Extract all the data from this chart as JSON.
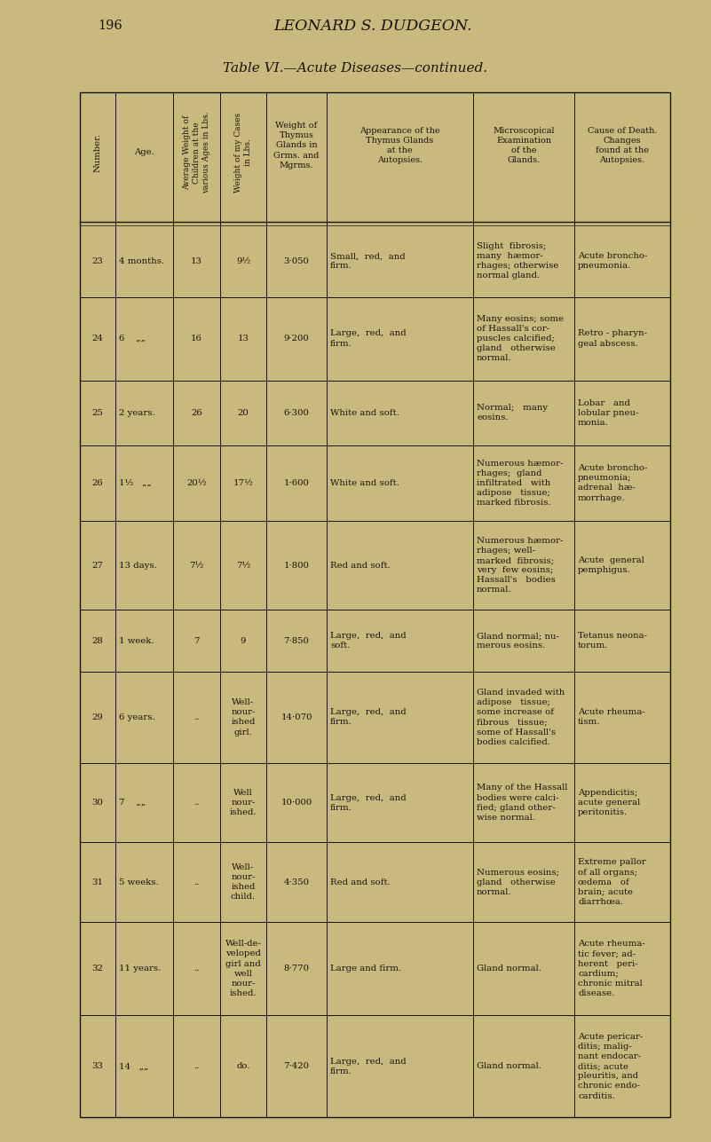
{
  "page_number": "196",
  "page_header": "LEONARD S. DUDGEON.",
  "table_title": "Table VI.—Acute Diseases—continued.",
  "bg_color": "#c8ba7e",
  "text_color": "#1a1208",
  "col_headers": [
    "Number.",
    "Age.",
    "Average Weight of\nChildren at the\nvarious Ages in Lbs.",
    "Weight of my Cases\nin Lbs.",
    "Weight of\nThymus\nGlands in\nGrms. and\nMgrms.",
    "Appearance of the\nThymus Glands\nat the\nAutopsies.",
    "Microscopical\nExamination\nof the\nGlands.",
    "Cause of Death.\nChanges\nfound at the\nAutopsies."
  ],
  "rows": [
    {
      "num": "23",
      "age": "4 months.",
      "avg_wt": "13",
      "case_wt": "9½",
      "thymus_wt": "3·050",
      "appearance": "Small,  red,  and\nfirm.",
      "microscopical": "Slight  fibrosis;\nmany  hæmor-\nrhages; otherwise\nnormal gland.",
      "cause": "Acute broncho-\npneumonia."
    },
    {
      "num": "24",
      "age": "6    „„",
      "avg_wt": "16",
      "case_wt": "13",
      "thymus_wt": "9·200",
      "appearance": "Large,  red,  and\nfirm.",
      "microscopical": "Many eosins; some\nof Hassall's cor-\npuscles calcified;\ngland   otherwise\nnormal.",
      "cause": "Retro - pharyn-\ngeal abscess."
    },
    {
      "num": "25",
      "age": "2 years.",
      "avg_wt": "26",
      "case_wt": "20",
      "thymus_wt": "6·300",
      "appearance": "White and soft.",
      "microscopical": "Normal;   many\neosins.",
      "cause": "Lobar   and\nlobular pneu-\nmonia."
    },
    {
      "num": "26",
      "age": "1⅟₂   „„",
      "avg_wt": "20½",
      "case_wt": "17½",
      "thymus_wt": "1·600",
      "appearance": "White and soft.",
      "microscopical": "Numerous hæmor-\nrhages;  gland\ninfiltrated   with\nadipose   tissue;\nmarked fibrosis.",
      "cause": "Acute broncho-\npneumonia;\nadrenal  hæ-\nmorrhage."
    },
    {
      "num": "27",
      "age": "13 days.",
      "avg_wt": "7½",
      "case_wt": "7½",
      "thymus_wt": "1·800",
      "appearance": "Red and soft.",
      "microscopical": "Numerous hæmor-\nrhages; well-\nmarked  fibrosis;\nvery  few eosins;\nHassall's   bodies\nnormal.",
      "cause": "Acute  general\npemphigus."
    },
    {
      "num": "28",
      "age": "1 week.",
      "avg_wt": "7",
      "case_wt": "9",
      "thymus_wt": "7·850",
      "appearance": "Large,  red,  and\nsoft.",
      "microscopical": "Gland normal; nu-\nmerous eosins.",
      "cause": "Tetanus neona-\ntorum."
    },
    {
      "num": "29",
      "age": "6 years.",
      "avg_wt": "..",
      "case_wt": "Well-\nnour-\nished\ngirl.",
      "thymus_wt": "14·070",
      "appearance": "Large,  red,  and\nfirm.",
      "microscopical": "Gland invaded with\nadipose   tissue;\nsome increase of\nfibrous   tissue;\nsome of Hassall's\nbodies calcified.",
      "cause": "Acute rheuma-\ntism."
    },
    {
      "num": "30",
      "age": "7    „„",
      "avg_wt": "..",
      "case_wt": "Well\nnour-\nished.",
      "thymus_wt": "10·000",
      "appearance": "Large,  red,  and\nfirm.",
      "microscopical": "Many of the Hassall\nbodies were calci-\nfied; gland other-\nwise normal.",
      "cause": "Appendicitis;\nacute general\nperitonitis."
    },
    {
      "num": "31",
      "age": "5 weeks.",
      "avg_wt": "..",
      "case_wt": "Well-\nnour-\nished\nchild.",
      "thymus_wt": "4·350",
      "appearance": "Red and soft.",
      "microscopical": "Numerous eosins;\ngland   otherwise\nnormal.",
      "cause": "Extreme pallor\nof all organs;\nœdema   of\nbrain; acute\ndiarrhœa."
    },
    {
      "num": "32",
      "age": "11 years.",
      "avg_wt": "..",
      "case_wt": "Well-de-\nveloped\ngirl and\nwell\nnour-\nished.",
      "thymus_wt": "8·770",
      "appearance": "Large and firm.",
      "microscopical": "Gland normal.",
      "cause": "Acute rheuma-\ntic fever; ad-\nherent   peri-\ncardium;\nchronic mitral\ndisease."
    },
    {
      "num": "33",
      "age": "14   „„",
      "avg_wt": "..",
      "case_wt": "do.",
      "thymus_wt": "7·420",
      "appearance": "Large,  red,  and\nfirm.",
      "microscopical": "Gland normal.",
      "cause": "Acute pericar-\nditis; malig-\nnant endocar-\nditis; acute\npleuritis, and\nchronic endo-\ncarditis."
    }
  ]
}
